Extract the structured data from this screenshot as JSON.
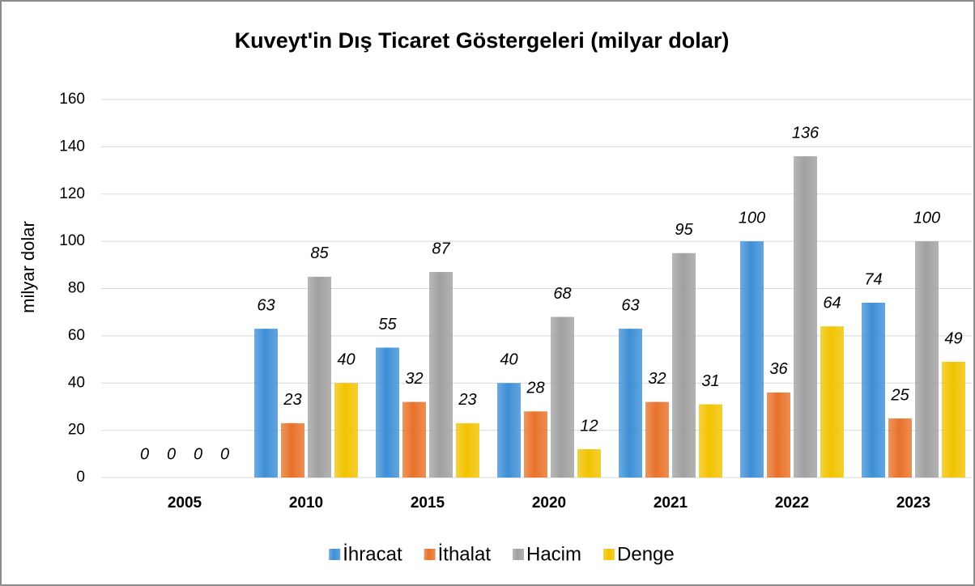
{
  "chart_data": {
    "type": "bar",
    "title": "Kuveyt'in Dış Ticaret Göstergeleri (milyar dolar)",
    "y_axis_label": "milyar dolar",
    "categories": [
      "2005",
      "2010",
      "2015",
      "2020",
      "2021",
      "2022",
      "2023"
    ],
    "series": [
      {
        "name": "İhracat",
        "color": "#3d8fd6",
        "values": [
          0,
          63,
          55,
          40,
          63,
          100,
          74
        ]
      },
      {
        "name": "İthalat",
        "color": "#e8722a",
        "values": [
          0,
          23,
          32,
          28,
          32,
          36,
          25
        ]
      },
      {
        "name": "Hacim",
        "color": "#a0a0a0",
        "values": [
          0,
          85,
          87,
          68,
          95,
          136,
          100
        ]
      },
      {
        "name": "Denge",
        "color": "#f2c300",
        "values": [
          0,
          40,
          23,
          12,
          31,
          64,
          49
        ]
      }
    ],
    "ylim": [
      0,
      160
    ],
    "yticks": [
      0,
      20,
      40,
      60,
      80,
      100,
      120,
      140,
      160
    ],
    "grid": true,
    "legend": "bottom"
  }
}
